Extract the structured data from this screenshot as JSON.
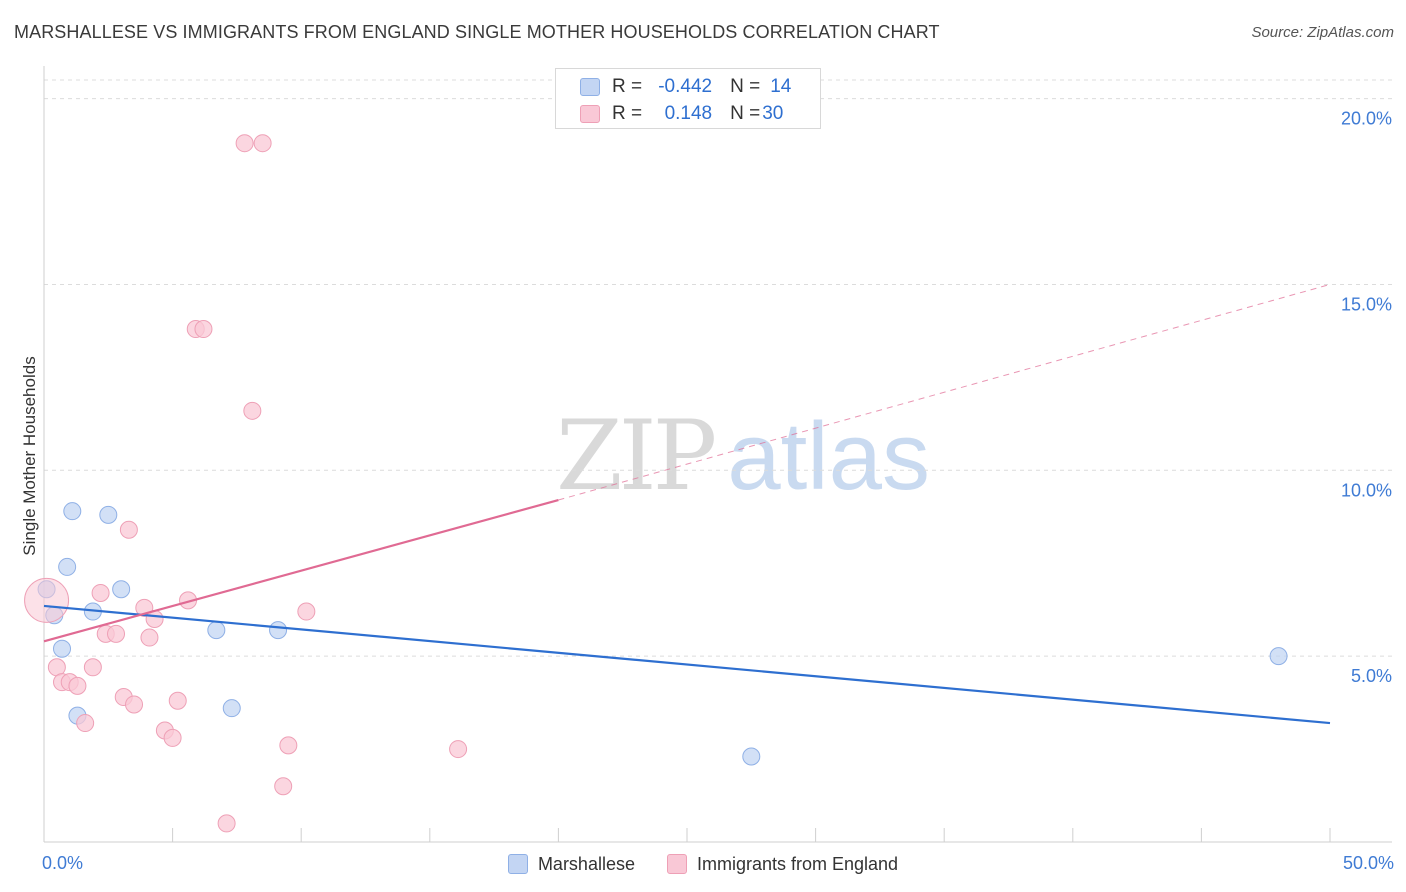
{
  "title": "MARSHALLESE VS IMMIGRANTS FROM ENGLAND SINGLE MOTHER HOUSEHOLDS CORRELATION CHART",
  "source": "Source: ZipAtlas.com",
  "watermark": {
    "zip": "ZIP",
    "atlas": "atlas"
  },
  "legend_top": [
    {
      "r_label": "R =",
      "r_value": "-0.442",
      "n_label": "N =",
      "n_value": "14"
    },
    {
      "r_label": "R =",
      "r_value": "0.148",
      "n_label": "N =",
      "n_value": "30"
    }
  ],
  "colors": {
    "blue_fill": "#c3d5f3",
    "blue_stroke": "#8fb0e6",
    "blue_line": "#2e6fd0",
    "pink_fill": "#f9c8d6",
    "pink_stroke": "#eea0b6",
    "pink_line": "#e06a93",
    "axis_label": "#3f7bd4",
    "grid": "#dcdcdc"
  },
  "chart_data": {
    "type": "scatter",
    "xlabel": "",
    "ylabel": "Single Mother Households",
    "xlim": [
      0,
      50
    ],
    "ylim": [
      0,
      20.5
    ],
    "x_tick_labels": [
      {
        "value": 0,
        "label": "0.0%"
      },
      {
        "value": 50,
        "label": "50.0%"
      }
    ],
    "y_tick_labels": [
      {
        "value": 5,
        "label": "5.0%"
      },
      {
        "value": 10,
        "label": "10.0%"
      },
      {
        "value": 15,
        "label": "15.0%"
      },
      {
        "value": 20,
        "label": "20.0%"
      }
    ],
    "x_minor_ticks": [
      5,
      10,
      15,
      20,
      25,
      30,
      35,
      40,
      45,
      50
    ],
    "grid": true,
    "legend_position": "top-center",
    "series": [
      {
        "name": "Marshallese",
        "color": "blue",
        "points": [
          {
            "x": 0.1,
            "y": 6.8
          },
          {
            "x": 0.4,
            "y": 6.1
          },
          {
            "x": 0.7,
            "y": 5.2
          },
          {
            "x": 0.9,
            "y": 7.4
          },
          {
            "x": 1.1,
            "y": 8.9
          },
          {
            "x": 1.3,
            "y": 3.4
          },
          {
            "x": 1.9,
            "y": 6.2
          },
          {
            "x": 2.5,
            "y": 8.8
          },
          {
            "x": 3.0,
            "y": 6.8
          },
          {
            "x": 6.7,
            "y": 5.7
          },
          {
            "x": 7.3,
            "y": 3.6
          },
          {
            "x": 9.1,
            "y": 5.7
          },
          {
            "x": 27.5,
            "y": 2.3
          },
          {
            "x": 48.0,
            "y": 5.0
          }
        ],
        "trend": {
          "x1": 0,
          "y1": 6.35,
          "x2": 50,
          "y2": 3.2
        }
      },
      {
        "name": "Immigrants from England",
        "color": "pink",
        "points": [
          {
            "x": 0.1,
            "y": 6.5,
            "big": true
          },
          {
            "x": 0.5,
            "y": 4.7
          },
          {
            "x": 0.7,
            "y": 4.3
          },
          {
            "x": 1.0,
            "y": 4.3
          },
          {
            "x": 1.3,
            "y": 4.2
          },
          {
            "x": 1.6,
            "y": 3.2
          },
          {
            "x": 1.9,
            "y": 4.7
          },
          {
            "x": 2.2,
            "y": 6.7
          },
          {
            "x": 2.4,
            "y": 5.6
          },
          {
            "x": 2.8,
            "y": 5.6
          },
          {
            "x": 3.1,
            "y": 3.9
          },
          {
            "x": 3.3,
            "y": 8.4
          },
          {
            "x": 3.5,
            "y": 3.7
          },
          {
            "x": 3.9,
            "y": 6.3
          },
          {
            "x": 4.1,
            "y": 5.5
          },
          {
            "x": 4.3,
            "y": 6.0
          },
          {
            "x": 4.7,
            "y": 3.0
          },
          {
            "x": 5.0,
            "y": 2.8
          },
          {
            "x": 5.2,
            "y": 3.8
          },
          {
            "x": 5.6,
            "y": 6.5
          },
          {
            "x": 5.9,
            "y": 13.8
          },
          {
            "x": 6.2,
            "y": 13.8
          },
          {
            "x": 7.1,
            "y": 0.5
          },
          {
            "x": 7.8,
            "y": 18.8
          },
          {
            "x": 8.1,
            "y": 11.6
          },
          {
            "x": 8.5,
            "y": 18.8
          },
          {
            "x": 9.3,
            "y": 1.5
          },
          {
            "x": 9.5,
            "y": 2.6
          },
          {
            "x": 10.2,
            "y": 6.2
          },
          {
            "x": 16.1,
            "y": 2.5
          }
        ],
        "trend_solid": {
          "x1": 0,
          "y1": 5.4,
          "x2": 20,
          "y2": 9.2
        },
        "trend_dashed": {
          "x1": 20,
          "y1": 9.2,
          "x2": 50,
          "y2": 15.0
        }
      }
    ]
  }
}
